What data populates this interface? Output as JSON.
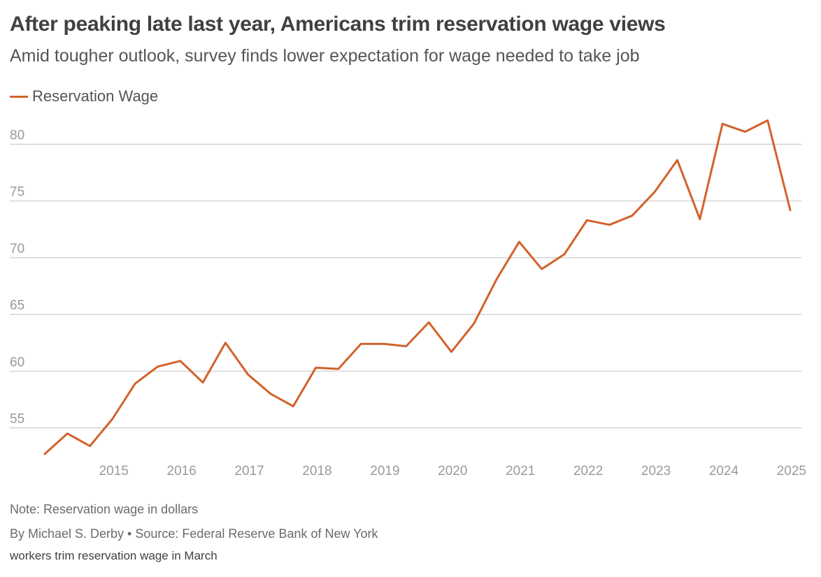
{
  "header": {
    "title": "After peaking late last year, Americans trim reservation wage views",
    "subtitle": "Amid tougher outlook, survey finds lower expectation for wage needed to take job"
  },
  "footer": {
    "note": "Note: Reservation wage in dollars",
    "byline": "By Michael S. Derby • Source: Federal Reserve Bank of New York",
    "caption": "workers trim reservation wage in March"
  },
  "colors": {
    "series": "#d2622b",
    "grid": "#cccccc",
    "tick_text": "#9a9a9a"
  },
  "chart_data": {
    "type": "line",
    "title": "After peaking late last year, Americans trim reservation wage views",
    "subtitle": "Amid tougher outlook, survey finds lower expectation for wage needed to take job",
    "xlabel": "",
    "ylabel": "",
    "x_ticks": [
      "2015",
      "2016",
      "2017",
      "2018",
      "2019",
      "2020",
      "2021",
      "2022",
      "2023",
      "2024",
      "2025"
    ],
    "y_ticks": [
      55,
      60,
      65,
      70,
      75,
      80
    ],
    "xlim": [
      "2014-03",
      "2025-03"
    ],
    "ylim": [
      52.5,
      83
    ],
    "grid": "horizontal",
    "legend_position": "top-left",
    "x": [
      "2014-03",
      "2014-07",
      "2014-11",
      "2015-03",
      "2015-07",
      "2015-11",
      "2016-03",
      "2016-07",
      "2016-11",
      "2017-03",
      "2017-07",
      "2017-11",
      "2018-03",
      "2018-07",
      "2018-11",
      "2019-03",
      "2019-07",
      "2019-11",
      "2020-03",
      "2020-07",
      "2020-11",
      "2021-03",
      "2021-07",
      "2021-11",
      "2022-03",
      "2022-07",
      "2022-11",
      "2023-03",
      "2023-07",
      "2023-11",
      "2024-03",
      "2024-07",
      "2024-11",
      "2025-03"
    ],
    "series": [
      {
        "name": "Reservation Wage",
        "values": [
          52.7,
          54.5,
          53.4,
          55.8,
          58.9,
          60.4,
          60.9,
          59.0,
          62.5,
          59.7,
          58.0,
          56.9,
          60.3,
          60.2,
          62.4,
          62.4,
          62.2,
          64.3,
          61.7,
          64.2,
          68.1,
          71.4,
          69.0,
          70.3,
          73.3,
          72.9,
          73.7,
          75.8,
          78.6,
          73.4,
          81.8,
          81.1,
          82.1,
          74.2
        ]
      }
    ]
  }
}
